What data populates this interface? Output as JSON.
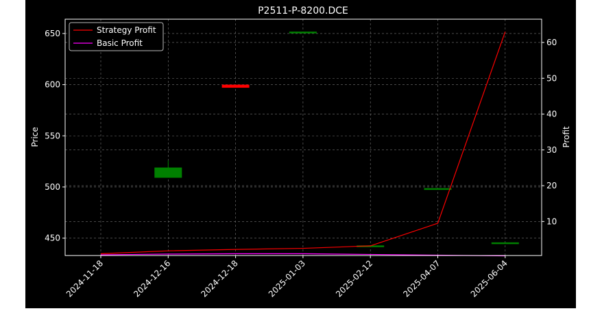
{
  "chart_data": {
    "type": "candlestick+line",
    "title": "P2511-P-8200.DCE",
    "ylabel_left": "Price",
    "ylabel_right": "Profit",
    "x_categories": [
      "2024-11-18",
      "2024-12-16",
      "2024-12-18",
      "2025-01-03",
      "2025-02-12",
      "2025-04-07",
      "2025-06-04"
    ],
    "ylim_left": [
      433,
      664
    ],
    "yticks_left": [
      450,
      500,
      550,
      600,
      650
    ],
    "ylim_right": [
      0.5,
      66.5
    ],
    "yticks_right": [
      10,
      20,
      30,
      40,
      50,
      60
    ],
    "grid": true,
    "legend_position": "upper-left",
    "colors": {
      "up": "#008000",
      "down": "#ff0000",
      "strategy": "#ff0000",
      "basic": "#ff00ff"
    },
    "candles": [
      {
        "x": "2024-12-16",
        "open": 509,
        "high": 526,
        "low": 509,
        "close": 519
      },
      {
        "x": "2024-12-18",
        "open": 600,
        "high": 600,
        "low": 597,
        "close": 597
      },
      {
        "x": "2025-01-03",
        "open": 650,
        "high": 651,
        "low": 650,
        "close": 651
      },
      {
        "x": "2025-02-12",
        "open": 442,
        "high": 442,
        "low": 442,
        "close": 442
      },
      {
        "x": "2025-04-07",
        "open": 498,
        "high": 498,
        "low": 498,
        "close": 498
      },
      {
        "x": "2025-06-04",
        "open": 445,
        "high": 445,
        "low": 445,
        "close": 445
      }
    ],
    "series": [
      {
        "name": "Strategy Profit",
        "axis": "right",
        "values": [
          1.0,
          1.8,
          2.2,
          2.5,
          3.2,
          9.5,
          63.0
        ]
      },
      {
        "name": "Basic Profit",
        "axis": "right",
        "values": [
          0.7,
          0.9,
          1.0,
          1.0,
          0.8,
          0.6,
          0.4
        ]
      }
    ]
  }
}
